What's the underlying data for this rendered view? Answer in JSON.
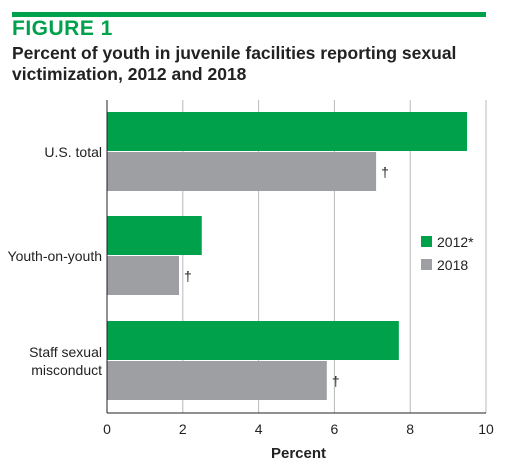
{
  "figure": {
    "label": "FIGURE 1",
    "title": "Percent of youth in juvenile facilities reporting sexual victimization, 2012 and 2018"
  },
  "colors": {
    "accent": "#00a14b",
    "series_2012": "#00a14b",
    "series_2018": "#9d9fa2",
    "grid": "#b8b8b8"
  },
  "chart_data": {
    "type": "bar",
    "orientation": "horizontal",
    "title": "Percent of youth in juvenile facilities reporting sexual victimization, 2012 and 2018",
    "xlabel": "Percent",
    "ylabel": "",
    "categories": [
      "U.S. total",
      "Youth-on-youth",
      "Staff sexual misconduct"
    ],
    "category_lines": [
      [
        "U.S. total"
      ],
      [
        "Youth-on-youth"
      ],
      [
        "Staff sexual",
        "misconduct"
      ]
    ],
    "series": [
      {
        "name": "2012*",
        "values": [
          9.5,
          2.5,
          7.7
        ]
      },
      {
        "name": "2018",
        "values": [
          7.1,
          1.9,
          5.8
        ],
        "notes": [
          "†",
          "†",
          "†"
        ]
      }
    ],
    "xlim": [
      0,
      10
    ],
    "xticks": [
      "0",
      "2",
      "4",
      "6",
      "8",
      "10"
    ],
    "grid": true,
    "legend_position": "right"
  }
}
